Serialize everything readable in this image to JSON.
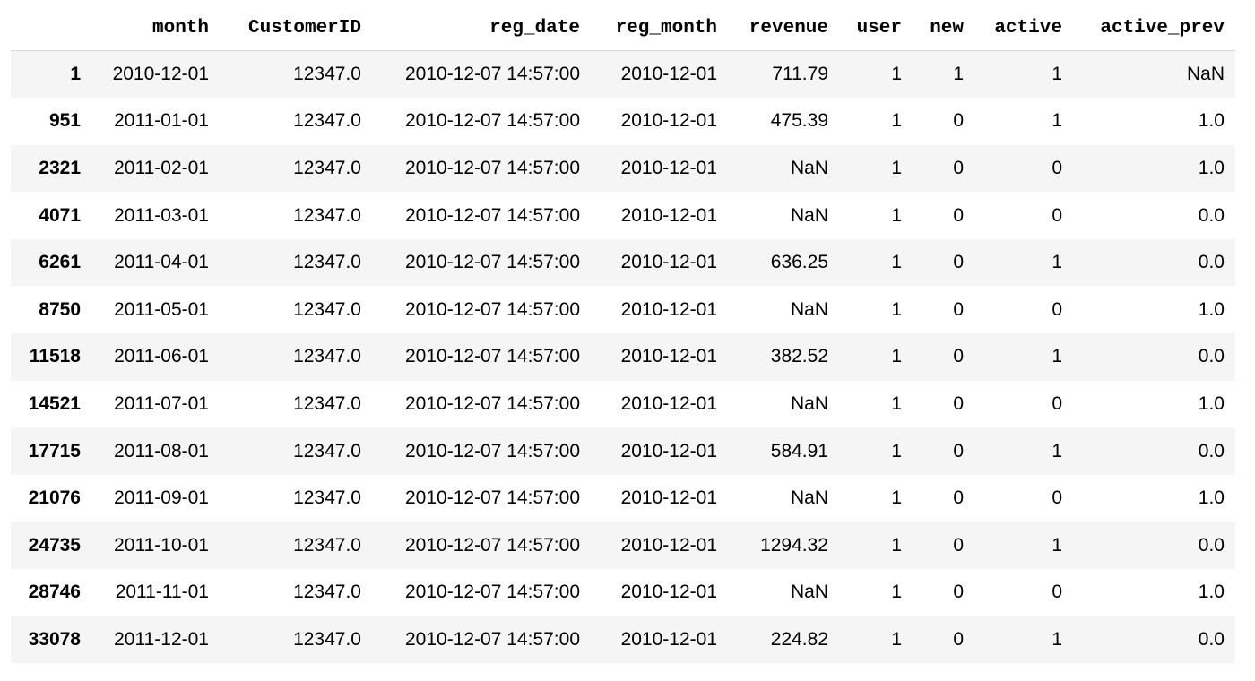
{
  "table": {
    "index_header": "",
    "columns": [
      "month",
      "CustomerID",
      "reg_date",
      "reg_month",
      "revenue",
      "user",
      "new",
      "active",
      "active_prev"
    ],
    "rows": [
      {
        "index": "1",
        "cells": [
          "2010-12-01",
          "12347.0",
          "2010-12-07 14:57:00",
          "2010-12-01",
          "711.79",
          "1",
          "1",
          "1",
          "NaN"
        ]
      },
      {
        "index": "951",
        "cells": [
          "2011-01-01",
          "12347.0",
          "2010-12-07 14:57:00",
          "2010-12-01",
          "475.39",
          "1",
          "0",
          "1",
          "1.0"
        ]
      },
      {
        "index": "2321",
        "cells": [
          "2011-02-01",
          "12347.0",
          "2010-12-07 14:57:00",
          "2010-12-01",
          "NaN",
          "1",
          "0",
          "0",
          "1.0"
        ]
      },
      {
        "index": "4071",
        "cells": [
          "2011-03-01",
          "12347.0",
          "2010-12-07 14:57:00",
          "2010-12-01",
          "NaN",
          "1",
          "0",
          "0",
          "0.0"
        ]
      },
      {
        "index": "6261",
        "cells": [
          "2011-04-01",
          "12347.0",
          "2010-12-07 14:57:00",
          "2010-12-01",
          "636.25",
          "1",
          "0",
          "1",
          "0.0"
        ]
      },
      {
        "index": "8750",
        "cells": [
          "2011-05-01",
          "12347.0",
          "2010-12-07 14:57:00",
          "2010-12-01",
          "NaN",
          "1",
          "0",
          "0",
          "1.0"
        ]
      },
      {
        "index": "11518",
        "cells": [
          "2011-06-01",
          "12347.0",
          "2010-12-07 14:57:00",
          "2010-12-01",
          "382.52",
          "1",
          "0",
          "1",
          "0.0"
        ]
      },
      {
        "index": "14521",
        "cells": [
          "2011-07-01",
          "12347.0",
          "2010-12-07 14:57:00",
          "2010-12-01",
          "NaN",
          "1",
          "0",
          "0",
          "1.0"
        ]
      },
      {
        "index": "17715",
        "cells": [
          "2011-08-01",
          "12347.0",
          "2010-12-07 14:57:00",
          "2010-12-01",
          "584.91",
          "1",
          "0",
          "1",
          "0.0"
        ]
      },
      {
        "index": "21076",
        "cells": [
          "2011-09-01",
          "12347.0",
          "2010-12-07 14:57:00",
          "2010-12-01",
          "NaN",
          "1",
          "0",
          "0",
          "1.0"
        ]
      },
      {
        "index": "24735",
        "cells": [
          "2011-10-01",
          "12347.0",
          "2010-12-07 14:57:00",
          "2010-12-01",
          "1294.32",
          "1",
          "0",
          "1",
          "0.0"
        ]
      },
      {
        "index": "28746",
        "cells": [
          "2011-11-01",
          "12347.0",
          "2010-12-07 14:57:00",
          "2010-12-01",
          "NaN",
          "1",
          "0",
          "0",
          "1.0"
        ]
      },
      {
        "index": "33078",
        "cells": [
          "2011-12-01",
          "12347.0",
          "2010-12-07 14:57:00",
          "2010-12-01",
          "224.82",
          "1",
          "0",
          "1",
          "0.0"
        ]
      }
    ]
  },
  "colors": {
    "stripe": "#f5f5f5",
    "background": "#ffffff",
    "text": "#000000"
  }
}
